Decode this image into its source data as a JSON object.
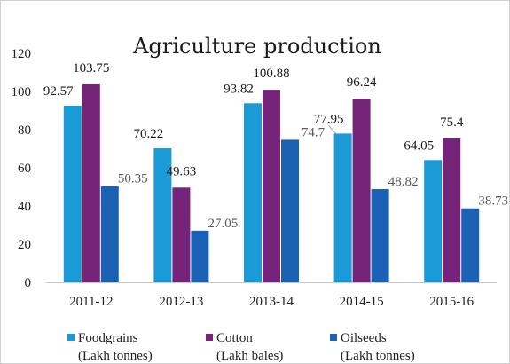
{
  "chart_data": {
    "type": "bar",
    "title": "Agriculture production",
    "xlabel": "",
    "ylabel": "",
    "ylim": [
      0,
      120
    ],
    "yticks": [
      0,
      20,
      40,
      60,
      80,
      100,
      120
    ],
    "grid": false,
    "legend_position": "bottom",
    "categories": [
      "2011-12",
      "2012-13",
      "2013-14",
      "2014-15",
      "2015-16"
    ],
    "series": [
      {
        "name": "Foodgrains",
        "unit_label": "(Lakh tonnes)",
        "color": "#1a9ad6",
        "label_color": "#1a1a1a",
        "values": [
          92.57,
          70.22,
          93.82,
          77.95,
          64.05
        ]
      },
      {
        "name": "Cotton",
        "unit_label": "(Lakh bales)",
        "color": "#76237a",
        "label_color": "#1a1a1a",
        "values": [
          103.75,
          49.63,
          100.88,
          96.24,
          75.4
        ]
      },
      {
        "name": "Oilseeds",
        "unit_label": "(Lakh tonnes)",
        "color": "#1b62b5",
        "label_color": "#595959",
        "values": [
          50.35,
          27.05,
          74.7,
          48.82,
          38.73
        ]
      }
    ]
  }
}
